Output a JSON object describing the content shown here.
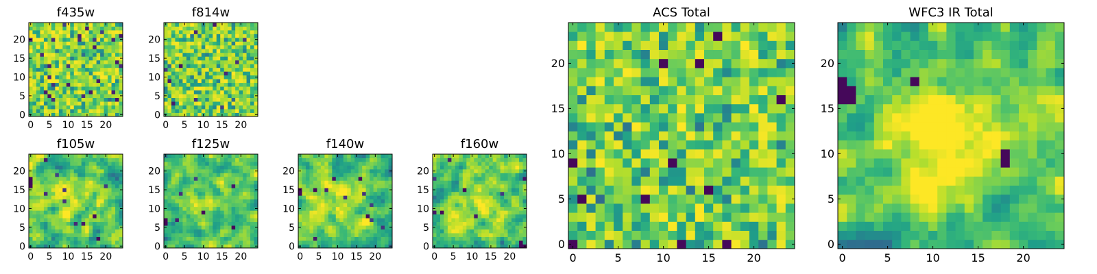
{
  "colormap": "viridis",
  "chart_data": [
    {
      "type": "heatmap",
      "title": "f435w",
      "grid_size": 25,
      "xticks": [
        0,
        5,
        10,
        15,
        20
      ],
      "yticks": [
        0,
        5,
        10,
        15,
        20
      ],
      "xlim": [
        0,
        24
      ],
      "ylim": [
        0,
        24
      ],
      "seed": 11,
      "smooth": 0,
      "gamma": 0.45,
      "center": null,
      "darks": [],
      "dark_fraction": 0.025
    },
    {
      "type": "heatmap",
      "title": "f814w",
      "grid_size": 25,
      "xticks": [
        0,
        5,
        10,
        15,
        20
      ],
      "yticks": [
        0,
        5,
        10,
        15,
        20
      ],
      "xlim": [
        0,
        24
      ],
      "ylim": [
        0,
        24
      ],
      "seed": 23,
      "smooth": 0,
      "gamma": 0.45,
      "center": null,
      "darks": [],
      "dark_fraction": 0.025
    },
    {
      "type": "heatmap",
      "title": "f105w",
      "grid_size": 25,
      "xticks": [
        0,
        5,
        10,
        15,
        20
      ],
      "yticks": [
        0,
        5,
        10,
        15,
        20
      ],
      "xlim": [
        0,
        24
      ],
      "ylim": [
        0,
        24
      ],
      "seed": 37,
      "smooth": 1,
      "gamma": 0.8,
      "center": [
        11,
        12,
        5,
        0.18
      ],
      "darks": [
        [
          0,
          16
        ],
        [
          0,
          17
        ],
        [
          0,
          18
        ],
        [
          17,
          8
        ],
        [
          18,
          2
        ]
      ],
      "dark_fraction": 0.01
    },
    {
      "type": "heatmap",
      "title": "f125w",
      "grid_size": 25,
      "xticks": [
        0,
        5,
        10,
        15,
        20
      ],
      "yticks": [
        0,
        5,
        10,
        15,
        20
      ],
      "xlim": [
        0,
        24
      ],
      "ylim": [
        0,
        24
      ],
      "seed": 41,
      "smooth": 1,
      "gamma": 0.8,
      "center": [
        11,
        12,
        5,
        0.15
      ],
      "darks": [
        [
          0,
          6
        ],
        [
          0,
          7
        ],
        [
          10,
          9
        ],
        [
          18,
          5
        ]
      ],
      "dark_fraction": 0.01
    },
    {
      "type": "heatmap",
      "title": "f140w",
      "grid_size": 25,
      "xticks": [
        0,
        5,
        10,
        15,
        20
      ],
      "yticks": [
        0,
        5,
        10,
        15,
        20
      ],
      "xlim": [
        0,
        24
      ],
      "ylim": [
        0,
        24
      ],
      "seed": 53,
      "smooth": 1,
      "gamma": 0.8,
      "center": [
        11,
        12,
        5,
        0.15
      ],
      "darks": [
        [
          0,
          14
        ],
        [
          0,
          15
        ],
        [
          4,
          15
        ],
        [
          18,
          8
        ],
        [
          16,
          18
        ]
      ],
      "dark_fraction": 0.01
    },
    {
      "type": "heatmap",
      "title": "f160w",
      "grid_size": 25,
      "xticks": [
        0,
        5,
        10,
        15,
        20
      ],
      "yticks": [
        0,
        5,
        10,
        15,
        20
      ],
      "xlim": [
        0,
        24
      ],
      "ylim": [
        0,
        24
      ],
      "seed": 67,
      "smooth": 1,
      "gamma": 0.8,
      "center": [
        11,
        12,
        5,
        0.15
      ],
      "darks": [
        [
          23,
          0
        ],
        [
          23,
          1
        ],
        [
          24,
          0
        ],
        [
          8,
          15
        ],
        [
          2,
          9
        ]
      ],
      "dark_fraction": 0.015
    },
    {
      "type": "heatmap",
      "title": "ACS Total",
      "grid_size": 25,
      "xticks": [
        0,
        5,
        10,
        15,
        20
      ],
      "yticks": [
        0,
        5,
        10,
        15,
        20
      ],
      "xlim": [
        0,
        24
      ],
      "ylim": [
        0,
        24
      ],
      "seed": 79,
      "smooth": 0,
      "gamma": 0.5,
      "center": null,
      "darks": [
        [
          16,
          23
        ],
        [
          14,
          20
        ],
        [
          10,
          20
        ],
        [
          23,
          16
        ],
        [
          0,
          9
        ],
        [
          11,
          9
        ],
        [
          15,
          6
        ],
        [
          1,
          5
        ],
        [
          8,
          5
        ],
        [
          0,
          0
        ],
        [
          12,
          0
        ],
        [
          17,
          0
        ]
      ],
      "dark_fraction": 0.0
    },
    {
      "type": "heatmap",
      "title": "WFC3 IR Total",
      "grid_size": 25,
      "xticks": [
        0,
        5,
        10,
        15,
        20
      ],
      "yticks": [
        0,
        5,
        10,
        15,
        20
      ],
      "xlim": [
        0,
        24
      ],
      "ylim": [
        0,
        24
      ],
      "seed": 97,
      "smooth": 1,
      "gamma": 1.0,
      "center": [
        11,
        12,
        4,
        0.35
      ],
      "darks": [
        [
          0,
          16
        ],
        [
          0,
          17
        ],
        [
          0,
          18
        ],
        [
          1,
          16
        ],
        [
          1,
          17
        ],
        [
          18,
          9
        ],
        [
          18,
          10
        ],
        [
          8,
          18
        ]
      ],
      "dark_fraction": 0.0
    }
  ]
}
